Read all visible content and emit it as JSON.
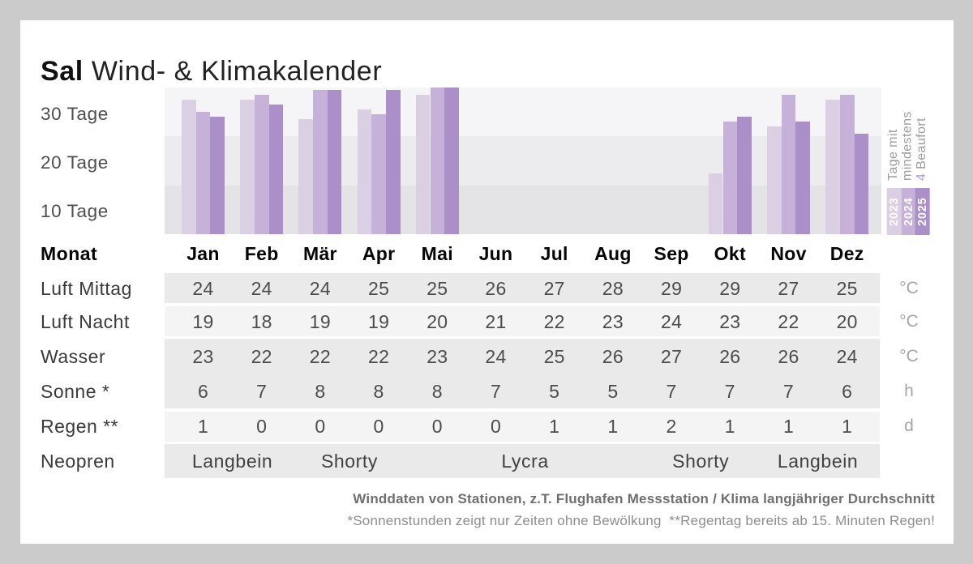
{
  "title": {
    "brand": "Sal",
    "rest": "Wind- & Klimakalender"
  },
  "chart_data": {
    "type": "bar",
    "title": "Tage mit mindestens 4 Beaufort",
    "categories": [
      "Jan",
      "Feb",
      "Mär",
      "Apr",
      "Mai",
      "Jun",
      "Jul",
      "Aug",
      "Sep",
      "Okt",
      "Nov",
      "Dez"
    ],
    "y_ticks": [
      "30 Tage",
      "20 Tage",
      "10 Tage"
    ],
    "ylim": [
      0,
      30
    ],
    "grid": "banded",
    "grid_bands": [
      "#f5f4f6",
      "#ecebed",
      "#e4e3e5"
    ],
    "legend_position": "right",
    "series": [
      {
        "name": "2023",
        "color": "#dbcfe4",
        "values": [
          27.5,
          27.5,
          23.5,
          25.5,
          28.5,
          null,
          null,
          null,
          null,
          12.5,
          22,
          27.5
        ]
      },
      {
        "name": "2024",
        "color": "#c6b1d8",
        "values": [
          25,
          28.5,
          29.5,
          24.5,
          30,
          null,
          null,
          null,
          null,
          23,
          28.5,
          28.5
        ]
      },
      {
        "name": "2025",
        "color": "#aa8fc8",
        "values": [
          24,
          26.5,
          29.5,
          29.5,
          30,
          null,
          null,
          null,
          null,
          24,
          23,
          20.5
        ]
      }
    ],
    "legend": {
      "lines": [
        "Tage mit",
        "mindestens"
      ],
      "accent": "4",
      "accent_rest": " Beaufort",
      "accent_color": "#b19bd0"
    }
  },
  "table": {
    "month_label": "Monat",
    "months": [
      "Jan",
      "Feb",
      "Mär",
      "Apr",
      "Mai",
      "Jun",
      "Jul",
      "Aug",
      "Sep",
      "Okt",
      "Nov",
      "Dez"
    ],
    "rows": [
      {
        "label": "Luft Mittag",
        "unit": "°C",
        "values": [
          "24",
          "24",
          "24",
          "25",
          "25",
          "26",
          "27",
          "28",
          "29",
          "29",
          "27",
          "25"
        ]
      },
      {
        "label": "Luft Nacht",
        "unit": "°C",
        "values": [
          "19",
          "18",
          "19",
          "19",
          "20",
          "21",
          "22",
          "23",
          "24",
          "23",
          "22",
          "20"
        ]
      },
      {
        "label": "Wasser",
        "unit": "°C",
        "values": [
          "23",
          "22",
          "22",
          "22",
          "23",
          "24",
          "25",
          "26",
          "27",
          "26",
          "26",
          "24"
        ]
      },
      {
        "label": "Sonne *",
        "unit": "h",
        "values": [
          "6",
          "7",
          "8",
          "8",
          "8",
          "7",
          "5",
          "5",
          "7",
          "7",
          "7",
          "6"
        ]
      },
      {
        "label": "Regen **",
        "unit": "d",
        "values": [
          "1",
          "0",
          "0",
          "0",
          "0",
          "0",
          "1",
          "1",
          "2",
          "1",
          "1",
          "1"
        ]
      }
    ],
    "neopren_row": {
      "label": "Neopren",
      "segments": [
        {
          "text": "Langbein",
          "from": 0,
          "to": 1
        },
        {
          "text": "Shorty",
          "from": 2,
          "to": 3
        },
        {
          "text": "Lycra",
          "from": 4,
          "to": 7
        },
        {
          "text": "Shorty",
          "from": 8,
          "to": 9
        },
        {
          "text": "Langbein",
          "from": 10,
          "to": 11
        }
      ]
    }
  },
  "footer": {
    "line1": "Winddaten von Stationen, z.T. Flughafen Messstation / Klima langjähriger Durchschnitt",
    "line2": "*Sonnenstunden zeigt nur Zeiten ohne Bewölkung  **Regentag bereits ab 15. Minuten Regen!"
  }
}
